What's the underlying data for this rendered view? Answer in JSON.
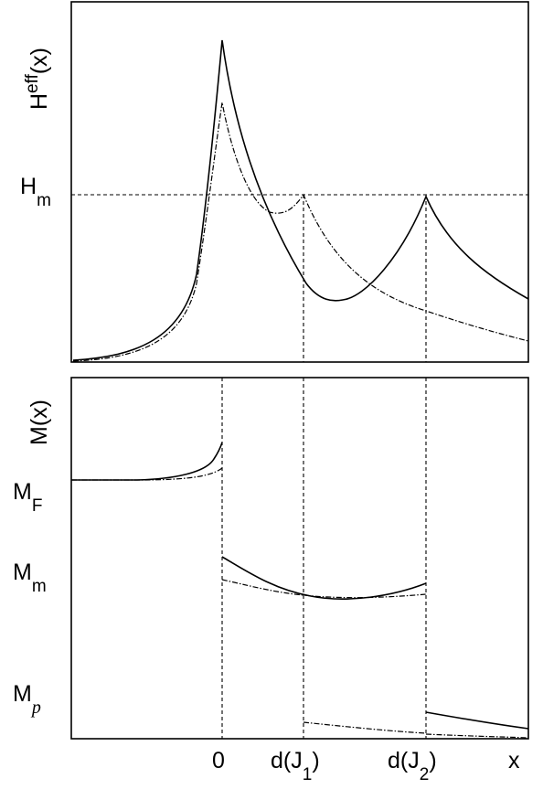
{
  "top_panel": {
    "y_label": "H",
    "y_label_sup": "eff",
    "y_label_suffix": "(x)",
    "level_label": "H",
    "level_label_sub": "m"
  },
  "bottom_panel": {
    "y_label": "M(x)",
    "mf_label": "M",
    "mf_sub": "F",
    "mm_label": "M",
    "mm_sub": "m",
    "mp_label": "M",
    "mp_sub": "p"
  },
  "x_axis": {
    "zero": "0",
    "dj1_prefix": "d(J",
    "dj1_sub": "1",
    "dj1_suffix": ")",
    "dj2_prefix": "d(J",
    "dj2_sub": "2",
    "dj2_suffix": ")",
    "x": "x"
  }
}
